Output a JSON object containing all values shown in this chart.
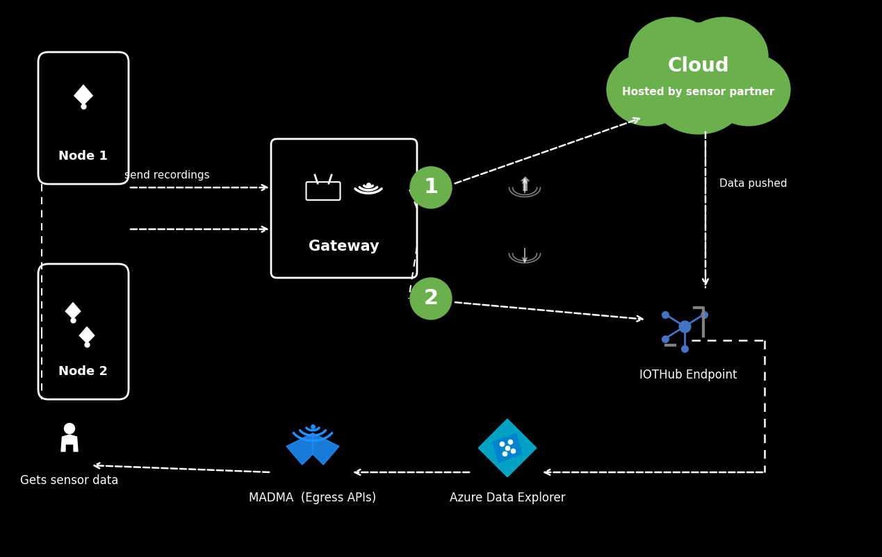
{
  "background_color": "#000000",
  "text_color": "#ffffff",
  "green_color": "#6ab04c",
  "blue_color": "#0078d4",
  "arrow_color": "#ffffff",
  "dashed_color": "#ffffff",
  "node1_label": "Node 1",
  "node2_label": "Node 2",
  "gateway_label": "Gateway",
  "cloud_label": "Cloud",
  "cloud_sublabel": "Hosted by sensor partner",
  "iothub_label": "IOTHub Endpoint",
  "madma_label": "MADMA  (Egress APIs)",
  "azure_label": "Azure Data Explorer",
  "user_label": "Gets sensor data",
  "send_label": "send recordings",
  "data_pushed_label": "Data pushed",
  "step1": "1",
  "step2": "2",
  "figsize": [
    12.69,
    8.02
  ],
  "dpi": 100
}
